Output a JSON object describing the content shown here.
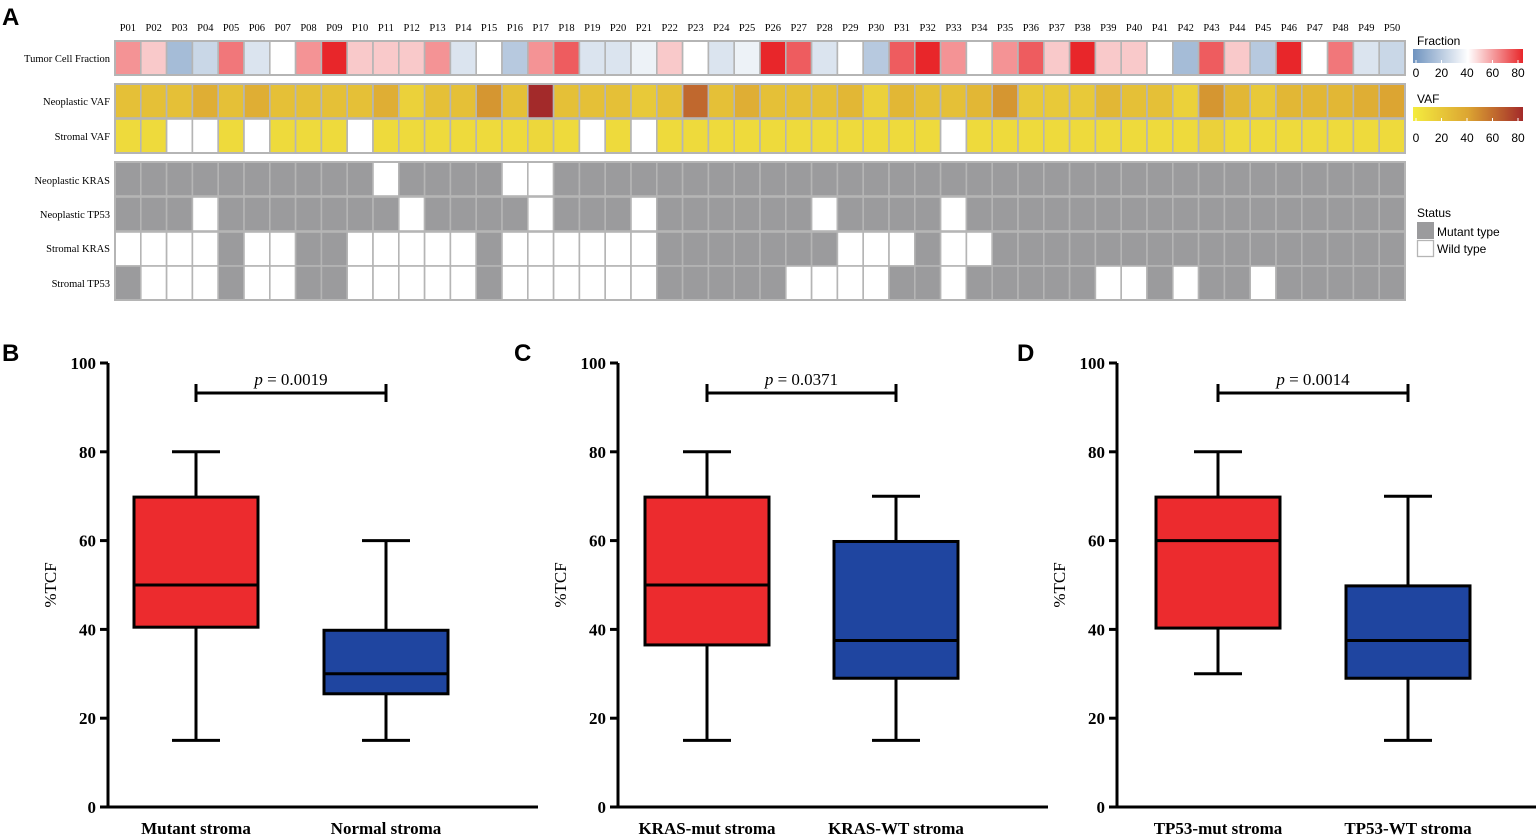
{
  "panel_labels": [
    "A",
    "B",
    "C",
    "D"
  ],
  "colors": {
    "fraction_low": "#6f93bf",
    "fraction_mid": "#ffffff",
    "fraction_high": "#e8262a",
    "vaf_low": "#f4ec3f",
    "vaf_mid": "#dca532",
    "vaf_high": "#a32a2a",
    "mutant": "#9b9b9d",
    "wild": "#ffffff",
    "grid_border": "#b5b5b5",
    "box_red": "#ec2b2e",
    "box_blue": "#1f45a0"
  },
  "chart_data": [
    {
      "type": "heatmap",
      "panel": "A",
      "patients": [
        "P01",
        "P02",
        "P03",
        "P04",
        "P05",
        "P06",
        "P07",
        "P08",
        "P09",
        "P10",
        "P11",
        "P12",
        "P13",
        "P14",
        "P15",
        "P16",
        "P17",
        "P18",
        "P19",
        "P20",
        "P21",
        "P22",
        "P23",
        "P24",
        "P25",
        "P26",
        "P27",
        "P28",
        "P29",
        "P30",
        "P31",
        "P32",
        "P33",
        "P34",
        "P35",
        "P36",
        "P37",
        "P38",
        "P39",
        "P40",
        "P41",
        "P42",
        "P43",
        "P44",
        "P45",
        "P46",
        "P47",
        "P48",
        "P49",
        "P50"
      ],
      "continuous_rows": [
        {
          "label": "Tumor Cell Fraction",
          "scale": "fraction",
          "values": [
            60,
            50,
            15,
            25,
            65,
            30,
            40,
            60,
            80,
            50,
            50,
            50,
            60,
            30,
            40,
            20,
            60,
            70,
            30,
            30,
            35,
            50,
            40,
            30,
            35,
            80,
            70,
            30,
            40,
            20,
            70,
            80,
            60,
            40,
            60,
            70,
            50,
            80,
            50,
            50,
            40,
            15,
            70,
            50,
            20,
            80,
            40,
            65,
            30,
            25
          ]
        },
        {
          "label": "Neoplastic VAF",
          "scale": "vaf",
          "values": [
            25,
            25,
            25,
            35,
            25,
            35,
            25,
            25,
            25,
            25,
            35,
            15,
            25,
            25,
            45,
            25,
            80,
            25,
            25,
            25,
            20,
            25,
            60,
            25,
            35,
            25,
            25,
            25,
            30,
            15,
            30,
            25,
            25,
            30,
            45,
            20,
            20,
            20,
            30,
            25,
            25,
            15,
            45,
            30,
            20,
            30,
            30,
            30,
            35,
            40
          ]
        },
        {
          "label": "Stromal VAF",
          "scale": "vaf",
          "values": [
            10,
            10,
            null,
            null,
            10,
            null,
            10,
            10,
            10,
            null,
            10,
            10,
            10,
            10,
            10,
            10,
            12,
            10,
            null,
            10,
            null,
            10,
            10,
            10,
            10,
            10,
            10,
            10,
            10,
            10,
            10,
            10,
            null,
            10,
            10,
            10,
            10,
            10,
            10,
            10,
            10,
            10,
            15,
            10,
            10,
            10,
            10,
            10,
            10,
            10
          ]
        }
      ],
      "status_rows": [
        {
          "label": "Neoplastic KRAS",
          "values": [
            "M",
            "M",
            "M",
            "M",
            "M",
            "M",
            "M",
            "M",
            "M",
            "M",
            "W",
            "M",
            "M",
            "M",
            "M",
            "W",
            "W",
            "M",
            "M",
            "M",
            "M",
            "M",
            "M",
            "M",
            "M",
            "M",
            "M",
            "M",
            "M",
            "M",
            "M",
            "M",
            "M",
            "M",
            "M",
            "M",
            "M",
            "M",
            "M",
            "M",
            "M",
            "M",
            "M",
            "M",
            "M",
            "M",
            "M",
            "M",
            "M",
            "M"
          ]
        },
        {
          "label": "Neoplastic TP53",
          "values": [
            "M",
            "M",
            "M",
            "W",
            "M",
            "M",
            "M",
            "M",
            "M",
            "M",
            "M",
            "W",
            "M",
            "M",
            "M",
            "M",
            "W",
            "M",
            "M",
            "M",
            "W",
            "M",
            "M",
            "M",
            "M",
            "M",
            "M",
            "W",
            "M",
            "M",
            "M",
            "M",
            "W",
            "M",
            "M",
            "M",
            "M",
            "M",
            "M",
            "M",
            "M",
            "M",
            "M",
            "M",
            "M",
            "M",
            "M",
            "M",
            "M",
            "M"
          ]
        },
        {
          "label": "Stromal KRAS",
          "values": [
            "W",
            "W",
            "W",
            "W",
            "M",
            "W",
            "W",
            "M",
            "M",
            "W",
            "W",
            "W",
            "W",
            "W",
            "M",
            "W",
            "W",
            "W",
            "W",
            "W",
            "W",
            "M",
            "M",
            "M",
            "M",
            "M",
            "M",
            "M",
            "W",
            "W",
            "W",
            "M",
            "W",
            "W",
            "M",
            "M",
            "M",
            "M",
            "M",
            "M",
            "M",
            "M",
            "M",
            "M",
            "M",
            "M",
            "M",
            "M",
            "M",
            "M"
          ]
        },
        {
          "label": "Stromal TP53",
          "values": [
            "M",
            "W",
            "W",
            "W",
            "M",
            "W",
            "W",
            "M",
            "M",
            "W",
            "W",
            "W",
            "W",
            "W",
            "M",
            "W",
            "W",
            "W",
            "W",
            "W",
            "W",
            "M",
            "M",
            "M",
            "M",
            "M",
            "W",
            "W",
            "W",
            "W",
            "M",
            "M",
            "W",
            "M",
            "M",
            "M",
            "M",
            "M",
            "W",
            "W",
            "M",
            "W",
            "M",
            "M",
            "W",
            "M",
            "M",
            "M",
            "M",
            "M"
          ]
        }
      ],
      "legends": {
        "fraction": {
          "title": "Fraction",
          "ticks": [
            "0",
            "20",
            "40",
            "60",
            "80"
          ]
        },
        "vaf": {
          "title": "VAF",
          "ticks": [
            "0",
            "20",
            "40",
            "60",
            "80"
          ]
        },
        "status": {
          "title": "Status",
          "items": [
            "Mutant type",
            "Wild type"
          ]
        }
      }
    },
    {
      "type": "box",
      "panel": "B",
      "ylabel": "%TCF",
      "ylim": [
        0,
        100
      ],
      "yticks": [
        0,
        20,
        40,
        60,
        80,
        100
      ],
      "groups": [
        {
          "name": "Mutant stroma",
          "color": "#ec2b2e",
          "min": 15,
          "q1": 40.5,
          "median": 50,
          "q3": 69.8,
          "max": 80
        },
        {
          "name": "Normal stroma",
          "color": "#1f45a0",
          "min": 15,
          "q1": 25.5,
          "median": 30,
          "q3": 39.8,
          "max": 60
        }
      ],
      "p_prefix": "p",
      "p_value": " = 0.0019"
    },
    {
      "type": "box",
      "panel": "C",
      "ylabel": "%TCF",
      "ylim": [
        0,
        100
      ],
      "yticks": [
        0,
        20,
        40,
        60,
        80,
        100
      ],
      "groups": [
        {
          "name": "KRAS-mut stroma",
          "color": "#ec2b2e",
          "min": 15,
          "q1": 36.5,
          "median": 50,
          "q3": 69.8,
          "max": 80
        },
        {
          "name": "KRAS-WT stroma",
          "color": "#1f45a0",
          "min": 15,
          "q1": 29,
          "median": 37.5,
          "q3": 59.8,
          "max": 70
        }
      ],
      "p_prefix": "p",
      "p_value": " = 0.0371"
    },
    {
      "type": "box",
      "panel": "D",
      "ylabel": "%TCF",
      "ylim": [
        0,
        100
      ],
      "yticks": [
        0,
        20,
        40,
        60,
        80,
        100
      ],
      "groups": [
        {
          "name": "TP53-mut stroma",
          "color": "#ec2b2e",
          "min": 30,
          "q1": 40.3,
          "median": 60,
          "q3": 69.8,
          "max": 80
        },
        {
          "name": "TP53-WT stroma",
          "color": "#1f45a0",
          "min": 15,
          "q1": 29,
          "median": 37.5,
          "q3": 49.8,
          "max": 70
        }
      ],
      "p_prefix": "p",
      "p_value": " = 0.0014"
    }
  ]
}
